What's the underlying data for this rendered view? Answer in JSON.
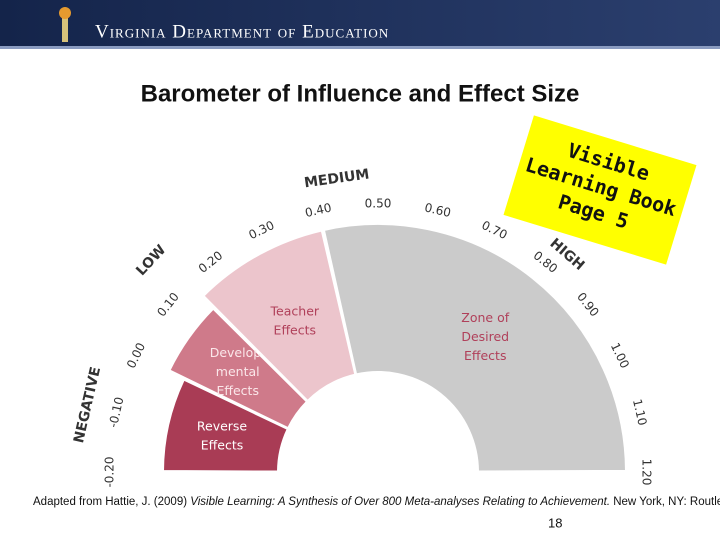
{
  "header": {
    "title": "Virginia Department of Education"
  },
  "slide": {
    "title": "Barometer of Influence and Effect Size",
    "ticks": [
      "-0.20",
      "-0.10",
      "0.00",
      "0.10",
      "0.20",
      "0.30",
      "0.40",
      "0.50",
      "0.60",
      "0.70",
      "0.80",
      "0.90",
      "1.00",
      "1.10",
      "1.20"
    ],
    "bands": [
      "NEGATIVE",
      "LOW",
      "MEDIUM",
      "HIGH"
    ],
    "zones": [
      {
        "lines": [
          "Reverse",
          "Effects"
        ]
      },
      {
        "lines": [
          "Develop-",
          "mental",
          "Effects"
        ]
      },
      {
        "lines": [
          "Teacher",
          "Effects"
        ]
      },
      {
        "lines": [
          "Zone of",
          "Desired",
          "Effects"
        ]
      }
    ],
    "note": [
      "Visible",
      "Learning Book",
      "Page 5"
    ],
    "citation": {
      "before": "Adapted from Hattie, J. (2009) ",
      "italic": "Visible Learning:  A Synthesis of Over 800 Meta-analyses Relating to Achievement.",
      "after": "  New York, NY: Routledge."
    },
    "page_number": "18"
  }
}
